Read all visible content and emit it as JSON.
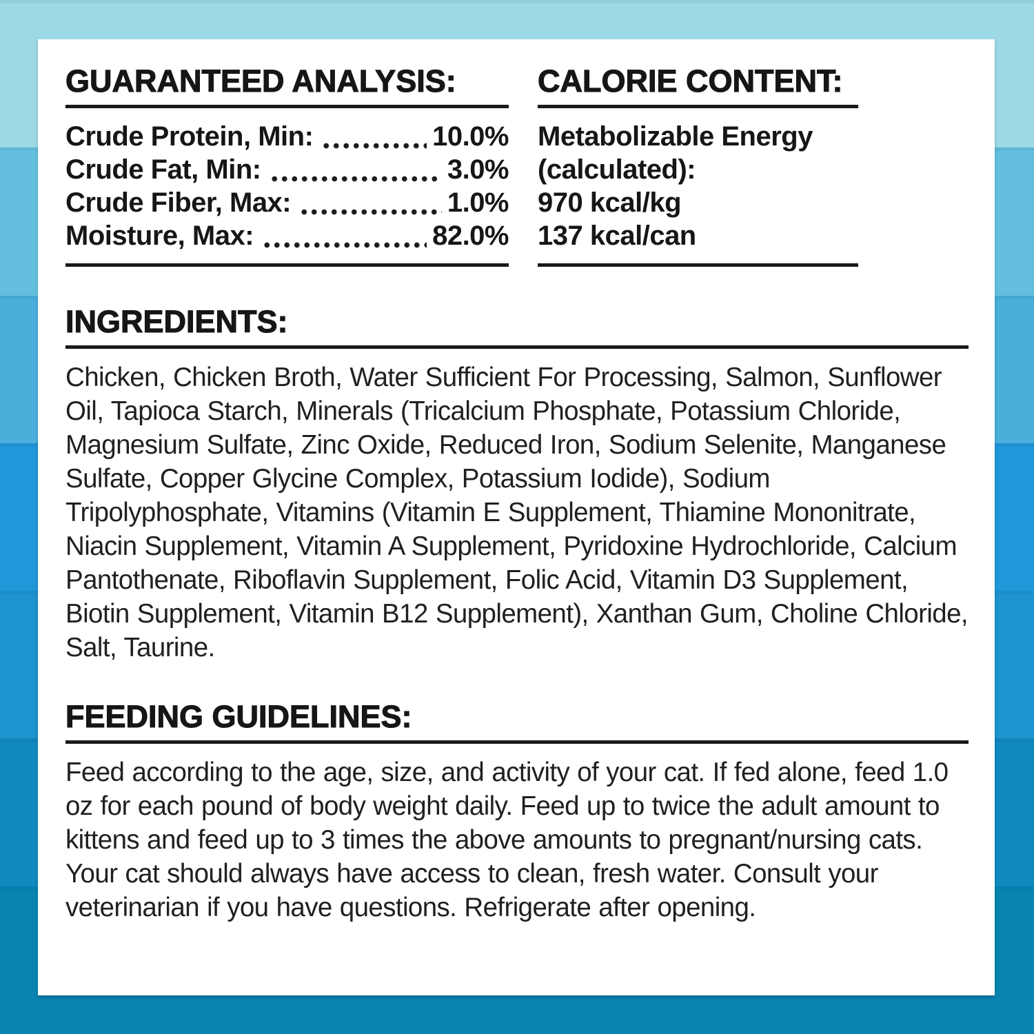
{
  "background": {
    "bands": [
      "#9cd9e5",
      "#64bfdf",
      "#4aafdb",
      "#2097d9",
      "#1d93cf",
      "#1189bf",
      "#0984b1"
    ],
    "card_bg": "#ffffff",
    "text_color": "#1a1a1a"
  },
  "guaranteed_analysis": {
    "title": "GUARANTEED ANALYSIS:",
    "rows": [
      {
        "label": "Crude Protein, Min:",
        "value": "10.0%"
      },
      {
        "label": "Crude Fat, Min:",
        "value": "3.0%"
      },
      {
        "label": "Crude Fiber, Max:",
        "value": "1.0%"
      },
      {
        "label": "Moisture, Max:",
        "value": "82.0%"
      }
    ]
  },
  "calorie_content": {
    "title": "CALORIE CONTENT:",
    "lines": [
      "Metabolizable Energy",
      "(calculated):",
      "970 kcal/kg",
      "137 kcal/can"
    ]
  },
  "ingredients": {
    "title": "INGREDIENTS:",
    "text": "Chicken, Chicken Broth, Water Sufficient For Processing, Salmon, Sunflower Oil, Tapioca Starch, Minerals (Tricalcium Phosphate, Potassium Chloride, Magnesium Sulfate, Zinc Oxide, Reduced Iron, Sodium Selenite, Manganese Sulfate, Copper Glycine Complex, Potassium Iodide), Sodium Tripolyphosphate, Vitamins (Vitamin E Supplement, Thiamine Mononitrate, Niacin Supplement, Vitamin A Supplement, Pyridoxine Hydrochloride, Calcium Pantothenate, Riboflavin Supplement, Folic Acid, Vitamin D3 Supplement, Biotin Supplement, Vitamin B12 Supplement), Xanthan Gum, Choline Chloride, Salt, Taurine."
  },
  "feeding_guidelines": {
    "title": "FEEDING GUIDELINES:",
    "text": "Feed according to the age, size, and activity of your cat. If fed alone, feed 1.0 oz for each pound of body weight daily. Feed up to twice the adult amount to kittens and feed up to 3 times the above amounts to pregnant/nursing cats. Your cat should always have access to clean, fresh water. Consult your veterinarian if you have questions. Refrigerate after opening."
  }
}
